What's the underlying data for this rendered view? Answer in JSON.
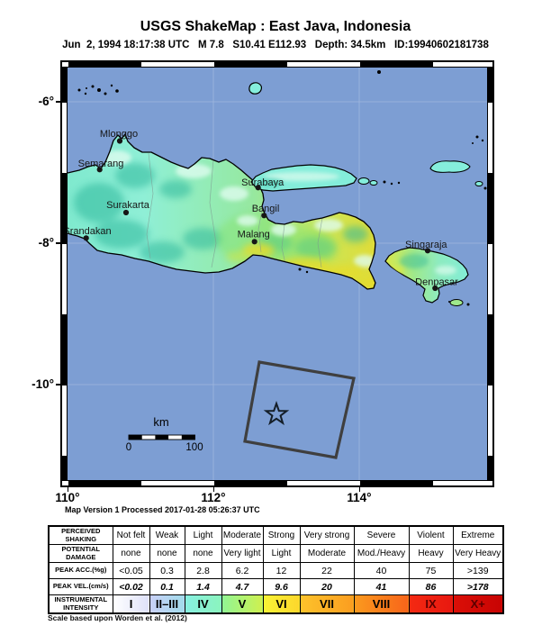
{
  "header": {
    "title": "USGS ShakeMap : East Java, Indonesia",
    "subtitle": "Jun  2, 1994 18:17:38 UTC   M 7.8   S10.41 E112.93   Depth: 34.5km   ID:19940602181738"
  },
  "map": {
    "axis": {
      "x_ticks": [
        "110°",
        "112°",
        "114°"
      ],
      "y_ticks": [
        "-6°",
        "-8°",
        "-10°"
      ]
    },
    "cities": [
      {
        "name": "Mlonggo"
      },
      {
        "name": "Semarang"
      },
      {
        "name": "Surakarta"
      },
      {
        "name": "Srandakan"
      },
      {
        "name": "Surabaya"
      },
      {
        "name": "Bangil"
      },
      {
        "name": "Malang"
      },
      {
        "name": "Singaraja"
      },
      {
        "name": "Denpasar"
      }
    ],
    "scale": {
      "unit": "km",
      "start": "0",
      "end": "100"
    },
    "version_note": "Map Version 1 Processed 2017-01-28 05:26:37 UTC"
  },
  "colors": {
    "ocean": "#7D9ED3",
    "coastline": "#000000",
    "fault_rect": "#3F3F3F",
    "land_cyan": "#84EDDA",
    "land_teal": "#2EB89C",
    "land_green": "#86E36B",
    "land_yellow": "#E4DC2E"
  },
  "legend_table": {
    "row_labels": [
      [
        "PERCEIVED",
        "SHAKING"
      ],
      [
        "POTENTIAL",
        "DAMAGE"
      ],
      [
        "PEAK ACC.(%g)"
      ],
      [
        "PEAK VEL.(cm/s)"
      ],
      [
        "INSTRUMENTAL",
        "INTENSITY"
      ]
    ],
    "shaking": [
      "Not felt",
      "Weak",
      "Light",
      "Moderate",
      "Strong",
      "Very strong",
      "Severe",
      "Violent",
      "Extreme"
    ],
    "damage": [
      "none",
      "none",
      "none",
      "Very light",
      "Light",
      "Moderate",
      "Mod./Heavy",
      "Heavy",
      "Very Heavy"
    ],
    "acc": [
      "<0.05",
      "0.3",
      "2.8",
      "6.2",
      "12",
      "22",
      "40",
      "75",
      ">139"
    ],
    "vel": [
      "<0.02",
      "0.1",
      "1.4",
      "4.7",
      "9.6",
      "20",
      "41",
      "86",
      ">178"
    ],
    "intensity": [
      "I",
      "II–III",
      "IV",
      "V",
      "VI",
      "VII",
      "VIII",
      "IX",
      "X+"
    ],
    "intensity_colors": [
      [
        "#FFFFFF",
        "#DEE1F9"
      ],
      [
        "#C9D0F7",
        "#A2DBEB"
      ],
      [
        "#87EFE1",
        "#8BF4BE"
      ],
      [
        "#90F695",
        "#CFF04F"
      ],
      [
        "#F9F335",
        "#FDD72C"
      ],
      [
        "#FDC32B",
        "#FB9D20"
      ],
      [
        "#FB9A1E",
        "#F7641A"
      ],
      [
        "#F42A12",
        "#E81810"
      ],
      [
        "#DB0F07",
        "#C80403"
      ]
    ],
    "intensity_text_colors": [
      "#000000",
      "#000000",
      "#000000",
      "#000000",
      "#000000",
      "#000000",
      "#000000",
      "#5A0000",
      "#5A0000"
    ],
    "footnote": "Scale based upon Worden et al. (2012)"
  }
}
